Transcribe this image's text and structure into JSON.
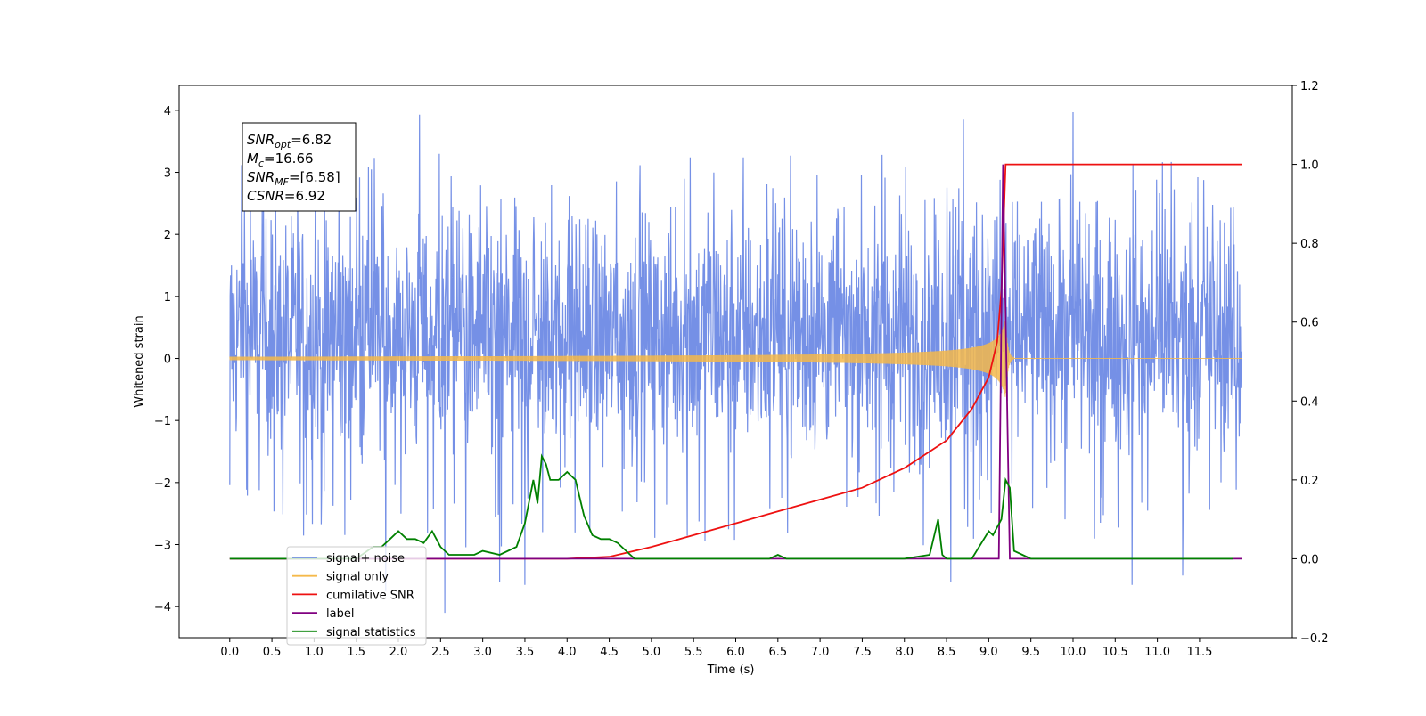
{
  "chart_data": {
    "type": "line",
    "title": "",
    "xlabel": "Time (s)",
    "ylabel": "Whitened strain",
    "y2label": "",
    "xlim": [
      -0.6,
      12.6
    ],
    "ylim": [
      -4.5,
      4.4
    ],
    "y2lim": [
      -0.2,
      1.2
    ],
    "grid": false,
    "legend_position": "lower-left",
    "x_ticks": [
      0.0,
      0.5,
      1.0,
      1.5,
      2.0,
      2.5,
      3.0,
      3.5,
      4.0,
      4.5,
      5.0,
      5.5,
      6.0,
      6.5,
      7.0,
      7.5,
      8.0,
      8.5,
      9.0,
      9.5,
      10.0,
      10.5,
      11.0,
      11.5
    ],
    "x_tick_labels": [
      "0.0",
      "0.5",
      "1.0",
      "1.5",
      "2.0",
      "2.5",
      "3.0",
      "3.5",
      "4.0",
      "4.5",
      "5.0",
      "5.5",
      "6.0",
      "6.5",
      "7.0",
      "7.5",
      "8.0",
      "8.5",
      "9.0",
      "9.5",
      "10.0",
      "10.5",
      "11.0",
      "11.5"
    ],
    "y_ticks": [
      -4,
      -3,
      -2,
      -1,
      0,
      1,
      2,
      3,
      4
    ],
    "y_tick_labels": [
      "−4",
      "−3",
      "−2",
      "−1",
      "0",
      "1",
      "2",
      "3",
      "4"
    ],
    "y2_ticks": [
      -0.2,
      0.0,
      0.2,
      0.4,
      0.6,
      0.8,
      1.0,
      1.2
    ],
    "y2_tick_labels": [
      "−0.2",
      "0.0",
      "0.2",
      "0.4",
      "0.6",
      "0.8",
      "1.0",
      "1.2"
    ],
    "annotation": [
      {
        "sym": "SNR",
        "sub": "opt",
        "value": "=6.82"
      },
      {
        "sym": "M",
        "sub": "c",
        "value": "=16.66"
      },
      {
        "sym": "SNR",
        "sub": "MF",
        "value": "=[6.58]"
      },
      {
        "sym": "CSNR",
        "sub": "",
        "value": "=6.92"
      }
    ],
    "x_start": 0.0,
    "x_end": 12.0,
    "merger_time": 9.2,
    "series": [
      {
        "name": "signal+ noise",
        "color": "#7590e6",
        "axis": "left",
        "kind": "noise",
        "envelope_typical": 2.3,
        "envelope_min": -3.6,
        "peaks": [
          [
            2.25,
            3.93
          ],
          [
            10.0,
            3.97
          ],
          [
            8.7,
            3.85
          ],
          [
            2.55,
            -4.1
          ],
          [
            10.7,
            -3.65
          ],
          [
            8.55,
            -3.6
          ],
          [
            1.85,
            -3.75
          ],
          [
            11.3,
            -3.5
          ],
          [
            3.5,
            -3.65
          ],
          [
            3.2,
            -3.6
          ]
        ]
      },
      {
        "name": "signal only",
        "color": "#f5b94a",
        "axis": "left",
        "kind": "chirp",
        "peak_amplitude": 0.65
      },
      {
        "name": "cumilative SNR",
        "color": "#ee1111",
        "axis": "right",
        "x": [
          0.0,
          1.0,
          2.0,
          3.0,
          4.0,
          4.5,
          5.0,
          5.5,
          6.0,
          6.5,
          7.0,
          7.5,
          8.0,
          8.5,
          8.8,
          9.0,
          9.1,
          9.15,
          9.2,
          9.25,
          9.3,
          9.5,
          10.0,
          11.0,
          12.0
        ],
        "y": [
          0.0,
          0.0,
          0.0,
          0.0,
          0.0,
          0.005,
          0.03,
          0.06,
          0.09,
          0.12,
          0.15,
          0.18,
          0.23,
          0.3,
          0.38,
          0.46,
          0.55,
          0.68,
          1.0,
          1.0,
          1.0,
          1.0,
          1.0,
          1.0,
          1.0
        ]
      },
      {
        "name": "label",
        "color": "#800080",
        "axis": "right",
        "x": [
          0.0,
          9.12,
          9.17,
          9.25,
          9.3,
          12.0
        ],
        "y": [
          0.0,
          0.0,
          1.0,
          0.0,
          0.0,
          0.0
        ]
      },
      {
        "name": "signal statistics",
        "color": "#008000",
        "axis": "right",
        "x": [
          0.0,
          0.5,
          1.0,
          1.5,
          1.7,
          1.8,
          1.9,
          2.0,
          2.1,
          2.2,
          2.3,
          2.4,
          2.5,
          2.6,
          2.7,
          2.8,
          2.9,
          3.0,
          3.2,
          3.4,
          3.5,
          3.6,
          3.65,
          3.7,
          3.75,
          3.8,
          3.9,
          4.0,
          4.1,
          4.2,
          4.3,
          4.4,
          4.5,
          4.6,
          4.7,
          4.8,
          4.9,
          5.0,
          5.5,
          6.0,
          6.4,
          6.5,
          6.6,
          7.0,
          8.0,
          8.3,
          8.4,
          8.45,
          8.5,
          8.6,
          8.7,
          8.8,
          9.0,
          9.05,
          9.1,
          9.15,
          9.2,
          9.25,
          9.3,
          9.4,
          9.5,
          10.0,
          11.0,
          11.9
        ],
        "y": [
          0.0,
          0.0,
          0.0,
          0.0,
          0.03,
          0.03,
          0.05,
          0.07,
          0.05,
          0.05,
          0.04,
          0.07,
          0.03,
          0.01,
          0.01,
          0.01,
          0.01,
          0.02,
          0.01,
          0.03,
          0.09,
          0.2,
          0.14,
          0.26,
          0.24,
          0.2,
          0.2,
          0.22,
          0.2,
          0.11,
          0.06,
          0.05,
          0.05,
          0.04,
          0.02,
          0.0,
          0.0,
          0.0,
          0.0,
          0.0,
          0.0,
          0.01,
          0.0,
          0.0,
          0.0,
          0.01,
          0.1,
          0.01,
          0.0,
          0.0,
          0.0,
          0.0,
          0.07,
          0.06,
          0.08,
          0.1,
          0.2,
          0.18,
          0.02,
          0.01,
          0.0,
          0.0,
          0.0,
          0.0
        ]
      }
    ],
    "legend": [
      {
        "label": "signal+ noise",
        "color": "#7590e6"
      },
      {
        "label": "signal only",
        "color": "#f5b94a"
      },
      {
        "label": "cumilative SNR",
        "color": "#ee1111"
      },
      {
        "label": "label",
        "color": "#800080"
      },
      {
        "label": "signal statistics",
        "color": "#008000"
      }
    ]
  }
}
